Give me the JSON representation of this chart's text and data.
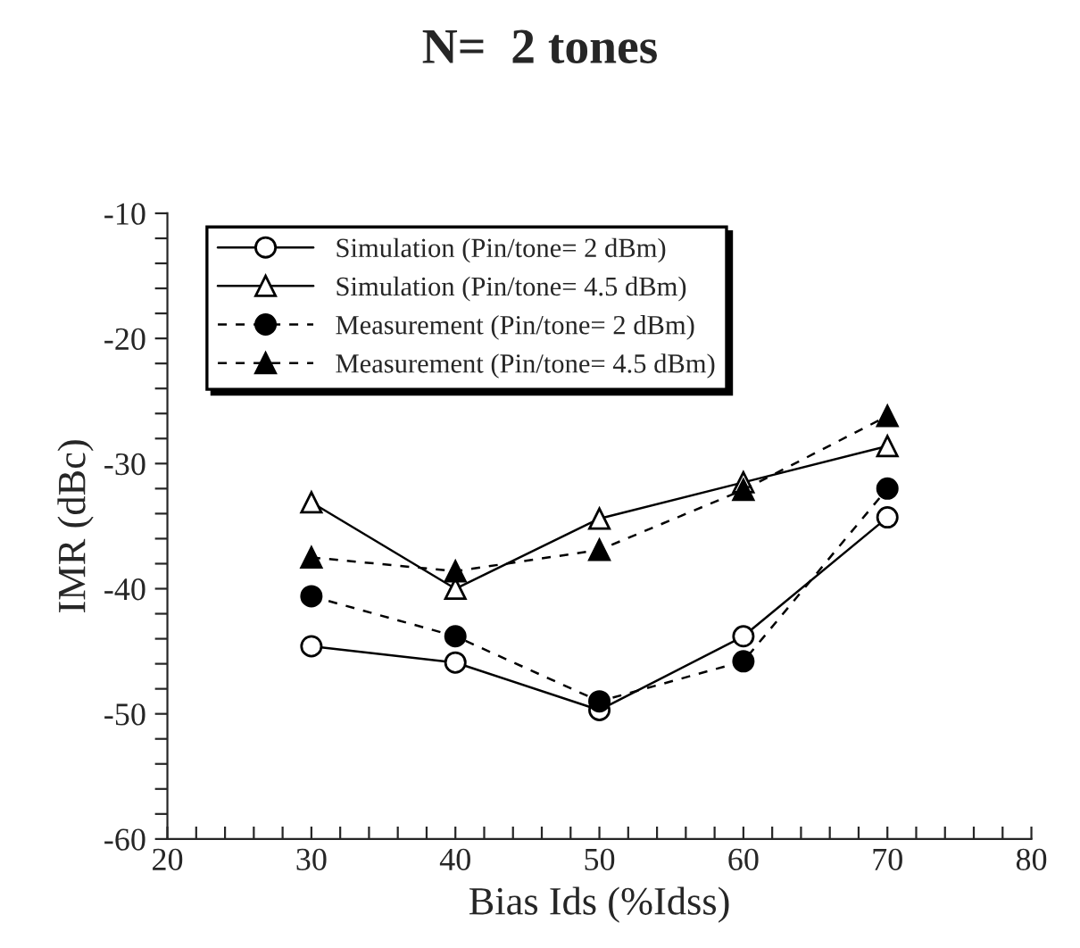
{
  "chart_data": {
    "type": "line",
    "title": "N=  2 tones",
    "xlabel": "Bias Ids (%Idss)",
    "ylabel": "IMR (dBc)",
    "x": [
      30,
      40,
      50,
      60,
      70
    ],
    "series": [
      {
        "name": "Simulation (Pin/tone= 2 dBm)",
        "color": "#000000",
        "values": [
          -44.6,
          -45.9,
          -49.7,
          -43.8,
          -34.3
        ],
        "marker": "circle",
        "line_style": "solid"
      },
      {
        "name": "Simulation (Pin/tone= 4.5 dBm)",
        "color": "#000000",
        "values": [
          -33.1,
          -40.0,
          -34.4,
          -31.5,
          -28.6
        ],
        "marker": "triangle",
        "line_style": "solid"
      },
      {
        "name": "Measurement (Pin/tone= 2 dBm)",
        "color": "#000000",
        "values": [
          -40.6,
          -43.8,
          -49.0,
          -45.8,
          -32.0
        ],
        "marker": "circle",
        "line_style": "dashed"
      },
      {
        "name": "Measurement (Pin/tone= 4.5 dBm)",
        "color": "#000000",
        "values": [
          -37.5,
          -38.6,
          -36.9,
          -32.1,
          -26.2
        ],
        "marker": "triangle",
        "line_style": "dashed"
      }
    ],
    "xlim": [
      20,
      80
    ],
    "ylim": [
      -60,
      -10
    ],
    "xticks": [
      20,
      {
        "value": 22,
        "label": null
      },
      {
        "value": 24,
        "label": null
      },
      {
        "value": 26,
        "label": null
      },
      {
        "value": 28,
        "label": null
      },
      30,
      {
        "value": 32,
        "label": null
      },
      {
        "value": 34,
        "label": null
      },
      {
        "value": 36,
        "label": null
      },
      {
        "value": 38,
        "label": null
      },
      40,
      {
        "value": 42,
        "label": null
      },
      {
        "value": 44,
        "label": null
      },
      {
        "value": 46,
        "label": null
      },
      {
        "value": 48,
        "label": null
      },
      50,
      {
        "value": 52,
        "label": null
      },
      {
        "value": 54,
        "label": null
      },
      {
        "value": 56,
        "label": null
      },
      {
        "value": 58,
        "label": null
      },
      60,
      {
        "value": 62,
        "label": null
      },
      {
        "value": 64,
        "label": null
      },
      {
        "value": 66,
        "label": null
      },
      {
        "value": 68,
        "label": null
      },
      70,
      {
        "value": 72,
        "label": null
      },
      {
        "value": 74,
        "label": null
      },
      {
        "value": 76,
        "label": null
      },
      {
        "value": 78,
        "label": null
      },
      80
    ],
    "yticks": [
      -60,
      {
        "value": -58,
        "label": null
      },
      {
        "value": -56,
        "label": null
      },
      {
        "value": -54,
        "label": null
      },
      {
        "value": -52,
        "label": null
      },
      -50,
      {
        "value": -48,
        "label": null
      },
      {
        "value": -46,
        "label": null
      },
      {
        "value": -44,
        "label": null
      },
      {
        "value": -42,
        "label": null
      },
      -40,
      {
        "value": -38,
        "label": null
      },
      {
        "value": -36,
        "label": null
      },
      {
        "value": -34,
        "label": null
      },
      {
        "value": -32,
        "label": null
      },
      -30,
      {
        "value": -28,
        "label": null
      },
      {
        "value": -26,
        "label": null
      },
      {
        "value": -24,
        "label": null
      },
      {
        "value": -22,
        "label": null
      },
      -20,
      {
        "value": -18,
        "label": null
      },
      {
        "value": -16,
        "label": null
      },
      {
        "value": -14,
        "label": null
      },
      {
        "value": -12,
        "label": null
      },
      -10
    ],
    "grid": false,
    "legend": "top left"
  }
}
